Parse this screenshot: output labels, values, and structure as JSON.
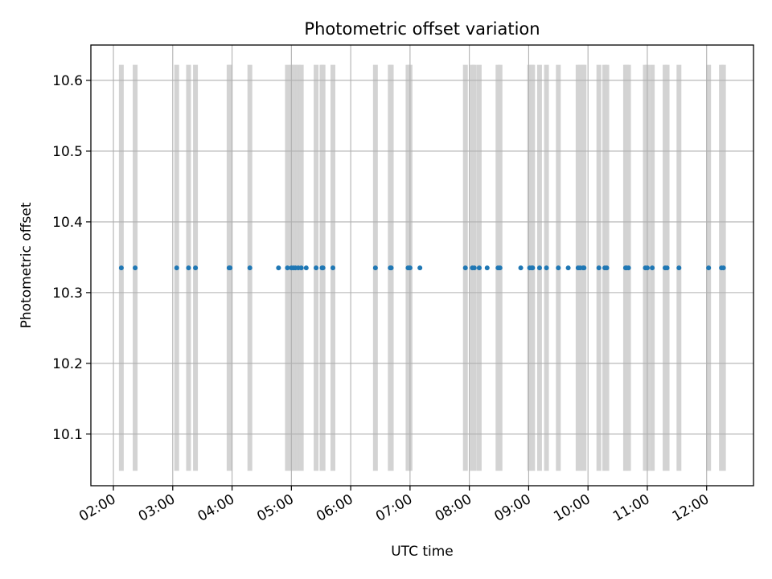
{
  "chart_data": {
    "type": "scatter",
    "title": "Photometric offset variation",
    "xlabel": "UTC time",
    "ylabel": "Photometric offset",
    "x_ticks": [
      "02:00",
      "03:00",
      "04:00",
      "05:00",
      "06:00",
      "07:00",
      "08:00",
      "09:00",
      "10:00",
      "11:00",
      "12:00"
    ],
    "x_range_hours": [
      1.62,
      12.79
    ],
    "y_ticks": [
      "10.1",
      "10.2",
      "10.3",
      "10.4",
      "10.5",
      "10.6"
    ],
    "y_range": [
      10.027,
      10.65
    ],
    "grid": true,
    "series": [
      {
        "marker": "point",
        "color": "#1f77b4",
        "y_value": 10.335,
        "times": [
          "02:08",
          "02:22",
          "03:04",
          "03:16",
          "03:23",
          "03:57",
          "03:58",
          "04:18",
          "04:47",
          "04:56",
          "05:00",
          "05:02",
          "05:04",
          "05:07",
          "05:10",
          "05:15",
          "05:25",
          "05:31",
          "05:32",
          "05:42",
          "06:25",
          "06:40",
          "06:41",
          "06:58",
          "07:00",
          "07:10",
          "07:56",
          "08:03",
          "08:05",
          "08:10",
          "08:18",
          "08:29",
          "08:31",
          "08:52",
          "09:01",
          "09:03",
          "09:04",
          "09:11",
          "09:18",
          "09:30",
          "09:40",
          "09:50",
          "09:52",
          "09:55",
          "09:56",
          "10:11",
          "10:17",
          "10:19",
          "10:38",
          "10:39",
          "10:41",
          "10:58",
          "11:00",
          "11:05",
          "11:18",
          "11:20",
          "11:32",
          "12:02",
          "12:15",
          "12:17"
        ]
      }
    ],
    "observation_bars": {
      "color": "#d3d3d3",
      "y_range": [
        10.048,
        10.622
      ],
      "times": [
        "02:08",
        "02:22",
        "03:04",
        "03:16",
        "03:23",
        "03:57",
        "03:58",
        "04:18",
        "04:56",
        "05:00",
        "05:02",
        "05:04",
        "05:07",
        "05:10",
        "05:25",
        "05:31",
        "05:32",
        "05:42",
        "06:25",
        "06:40",
        "06:41",
        "06:58",
        "07:00",
        "07:56",
        "08:03",
        "08:05",
        "08:10",
        "08:29",
        "08:31",
        "09:01",
        "09:03",
        "09:04",
        "09:11",
        "09:18",
        "09:30",
        "09:50",
        "09:52",
        "09:55",
        "09:56",
        "10:11",
        "10:17",
        "10:19",
        "10:38",
        "10:39",
        "10:41",
        "10:58",
        "11:00",
        "11:05",
        "11:18",
        "11:20",
        "11:32",
        "12:02",
        "12:15",
        "12:17"
      ]
    }
  }
}
